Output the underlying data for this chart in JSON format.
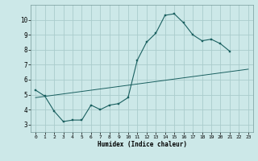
{
  "xlabel": "Humidex (Indice chaleur)",
  "bg_color": "#cce8e8",
  "grid_color": "#aacccc",
  "line_color": "#1a6060",
  "xlim": [
    -0.5,
    23.5
  ],
  "ylim": [
    2.5,
    11.0
  ],
  "xticks": [
    0,
    1,
    2,
    3,
    4,
    5,
    6,
    7,
    8,
    9,
    10,
    11,
    12,
    13,
    14,
    15,
    16,
    17,
    18,
    19,
    20,
    21,
    22,
    23
  ],
  "yticks": [
    3,
    4,
    5,
    6,
    7,
    8,
    9,
    10
  ],
  "curve_x": [
    0,
    1,
    2,
    3,
    4,
    5,
    6,
    7,
    8,
    9,
    10,
    11,
    12,
    13,
    14,
    15,
    16,
    17,
    18,
    19,
    20,
    21
  ],
  "curve_y": [
    5.3,
    4.9,
    3.9,
    3.2,
    3.3,
    3.3,
    4.3,
    4.0,
    4.3,
    4.4,
    4.8,
    7.3,
    8.5,
    9.1,
    10.3,
    10.4,
    9.8,
    9.0,
    8.6,
    8.7,
    8.4,
    7.9
  ],
  "trend_x": [
    0,
    23
  ],
  "trend_y": [
    4.8,
    6.7
  ]
}
